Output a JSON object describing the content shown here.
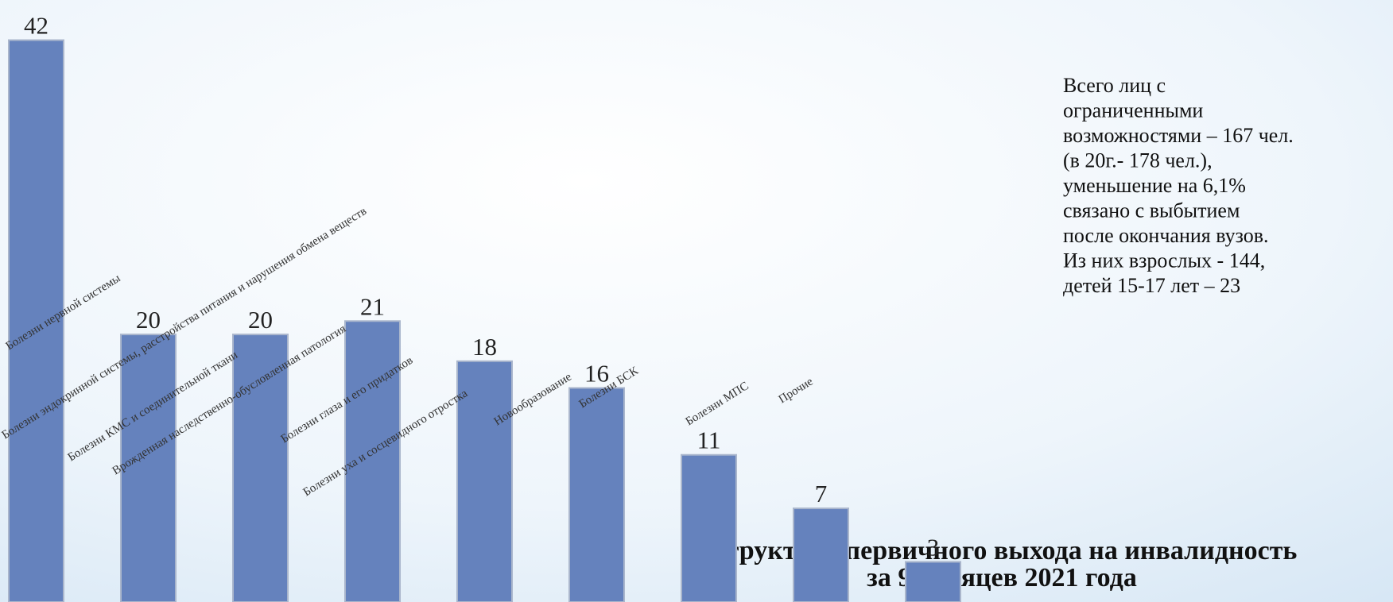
{
  "chart_data": {
    "type": "bar",
    "title": [
      "Структура первичного выхода на инвалидность",
      "за 9 месяцев 2021 года"
    ],
    "categories": [
      "Болезни нервной системы",
      "Болезни эндокринной системы, расстройства питания и нарушения обмена веществ",
      "Болезни КМС и соединительной ткани",
      "Врожденная наследственно-обусловленная патология",
      "Болезни глаза и его придатков",
      "Болезни уха и сосцевидного отростка",
      "Новообразование",
      "Болезни БСК",
      "Болезни МПС",
      "Прочие"
    ],
    "values": [
      42,
      20,
      20,
      21,
      18,
      16,
      11,
      7,
      3,
      null
    ],
    "color": "#6582bd",
    "ylim": [
      0,
      45
    ]
  },
  "note": [
    "Всего лиц с",
    "ограниченными",
    "возможностями – 167 чел.",
    "(в 20г.- 178 чел.),",
    "уменьшение на 6,1%",
    "связано с выбытием",
    "после окончания вузов.",
    "Из них взрослых - 144,",
    "детей 15-17 лет – 23"
  ]
}
